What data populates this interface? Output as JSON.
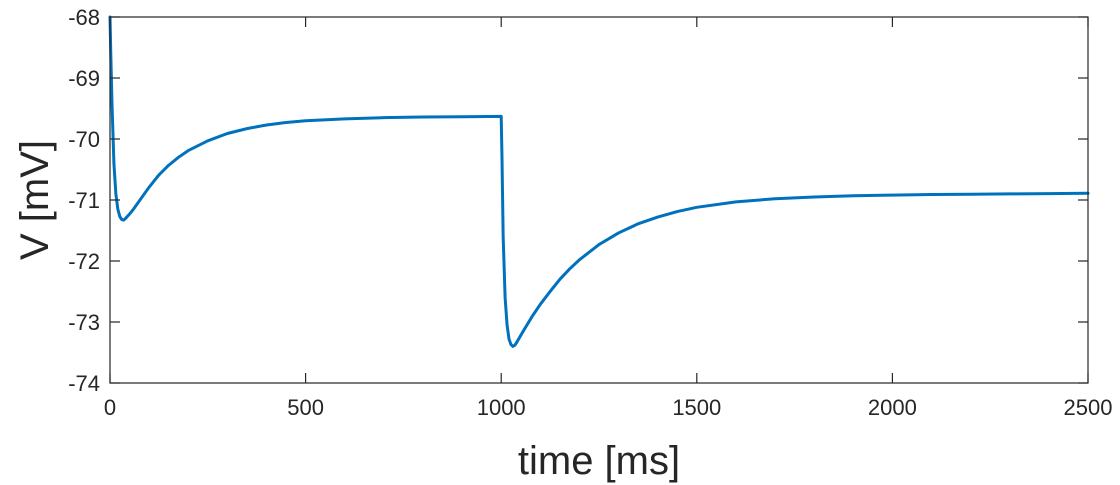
{
  "chart_data": {
    "type": "line",
    "title": "",
    "xlabel": "time [ms]",
    "ylabel": "V [mV]",
    "xlim": [
      0,
      2500
    ],
    "ylim": [
      -74,
      -68
    ],
    "xticks": [
      0,
      500,
      1000,
      1500,
      2000,
      2500
    ],
    "xtick_labels": [
      "0",
      "500",
      "1000",
      "1500",
      "2000",
      "2500"
    ],
    "yticks": [
      -74,
      -73,
      -72,
      -71,
      -70,
      -69,
      -68
    ],
    "ytick_labels": [
      "-74",
      "-73",
      "-72",
      -71,
      "-70",
      "-69",
      "-68"
    ],
    "grid": false,
    "legend": "none",
    "line_color": "#0072BD",
    "series": [
      {
        "x": [
          0,
          2,
          5,
          10,
          15,
          20,
          25,
          30,
          35,
          40,
          50,
          60,
          80,
          100,
          125,
          150,
          175,
          200,
          250,
          300,
          350,
          400,
          450,
          500,
          600,
          700,
          800,
          900,
          1000,
          1002,
          1005,
          1010,
          1015,
          1020,
          1025,
          1030,
          1035,
          1040,
          1050,
          1060,
          1080,
          1100,
          1125,
          1150,
          1175,
          1200,
          1250,
          1300,
          1350,
          1400,
          1450,
          1500,
          1600,
          1700,
          1800,
          1900,
          2000,
          2100,
          2200,
          2300,
          2400,
          2500
        ],
        "y": [
          -68.0,
          -68.6,
          -69.4,
          -70.4,
          -70.9,
          -71.15,
          -71.27,
          -71.32,
          -71.33,
          -71.3,
          -71.23,
          -71.15,
          -70.97,
          -70.79,
          -70.59,
          -70.43,
          -70.3,
          -70.19,
          -70.03,
          -69.91,
          -69.83,
          -69.77,
          -69.73,
          -69.7,
          -69.67,
          -69.65,
          -69.64,
          -69.635,
          -69.63,
          -70.3,
          -71.6,
          -72.6,
          -73.05,
          -73.28,
          -73.37,
          -73.4,
          -73.38,
          -73.33,
          -73.22,
          -73.11,
          -72.9,
          -72.71,
          -72.5,
          -72.3,
          -72.13,
          -71.98,
          -71.73,
          -71.54,
          -71.39,
          -71.28,
          -71.19,
          -71.12,
          -71.03,
          -70.98,
          -70.95,
          -70.93,
          -70.92,
          -70.91,
          -70.905,
          -70.9,
          -70.895,
          -70.89
        ]
      }
    ]
  }
}
